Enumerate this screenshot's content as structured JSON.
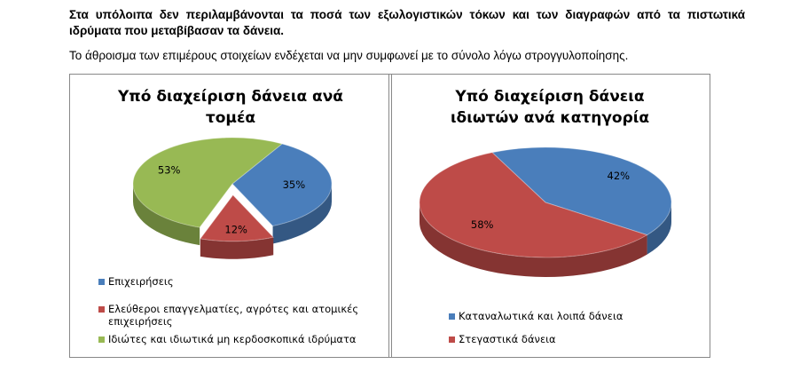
{
  "notes": [
    "Στα υπόλοιπα δεν περιλαμβάνονται τα ποσά των εξωλογιστικών τόκων και των διαγραφών από τα πιστωτικά ιδρύματα που μεταβίβασαν τα δάνεια.",
    "Το άθροισμα των επιμέρους στοιχείων ενδέχεται να μην συμφωνεί με το σύνολο λόγω στρογγυλοποίησης."
  ],
  "chart_data": [
    {
      "type": "pie",
      "title": "Υπό διαχείριση δάνεια ανά τομέα",
      "categories": [
        "Επιχειρήσεις",
        "Ελεύθεροι επαγγελματίες, αγρότες και ατομικές επιχειρήσεις",
        "Ιδιώτες και ιδιωτικά μη κερδοσκοπικά ιδρύματα"
      ],
      "values": [
        35,
        12,
        53
      ],
      "value_labels": [
        "35%",
        "12%",
        "53%"
      ],
      "colors": [
        "#4a7ebb",
        "#be4b48",
        "#98b954"
      ],
      "exploded": [
        false,
        true,
        false
      ]
    },
    {
      "type": "pie",
      "title": "Υπό διαχείριση δάνεια ιδιωτών ανά κατηγορία",
      "categories": [
        "Καταναλωτικά και λοιπά δάνεια",
        "Στεγαστικά δάνεια"
      ],
      "values": [
        42,
        58
      ],
      "value_labels": [
        "42%",
        "58%"
      ],
      "colors": [
        "#4a7ebb",
        "#be4b48"
      ],
      "exploded": [
        false,
        false
      ]
    }
  ]
}
